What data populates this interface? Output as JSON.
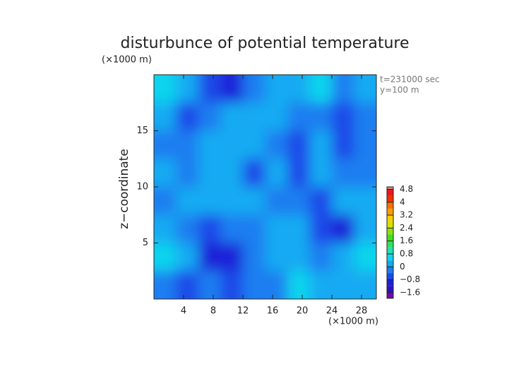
{
  "chart_data": {
    "type": "contour",
    "title": "disturbunce of potential temperature",
    "y_unit": "(×1000 m)",
    "x_unit": "(×1000 m)",
    "ylabel": "z−coordinate",
    "annotations": [
      "t=231000 sec",
      "y=100 m"
    ],
    "xlim": [
      0,
      30
    ],
    "ylim": [
      0,
      20
    ],
    "xticks": [
      4,
      8,
      12,
      16,
      20,
      24,
      28
    ],
    "yticks": [
      5,
      10,
      15
    ],
    "x_edges": [
      0,
      3,
      6,
      9,
      12,
      15,
      18,
      21,
      24,
      27,
      30
    ],
    "y_edges": [
      20,
      17.5,
      15,
      12.5,
      10,
      7.5,
      5,
      2.5,
      0
    ],
    "z": [
      [
        0.5,
        0.0,
        -0.5,
        -1.0,
        -0.3,
        0.1,
        0.2,
        0.5,
        -0.2,
        0.0
      ],
      [
        0.0,
        -0.5,
        -0.2,
        0.2,
        0.3,
        0.2,
        -0.4,
        -0.2,
        -0.6,
        -0.3
      ],
      [
        -0.2,
        -0.4,
        0.2,
        0.3,
        0.0,
        -0.2,
        -0.5,
        0.2,
        -0.6,
        -0.4
      ],
      [
        0.2,
        -0.3,
        0.0,
        0.2,
        -0.5,
        0.1,
        -0.5,
        0.3,
        -0.2,
        -0.4
      ],
      [
        -0.1,
        0.3,
        0.0,
        0.2,
        0.3,
        -0.3,
        -0.1,
        -0.5,
        0.0,
        0.3
      ],
      [
        0.1,
        -0.2,
        -0.5,
        -0.2,
        -0.3,
        0.1,
        0.0,
        -0.5,
        -0.9,
        0.1
      ],
      [
        0.5,
        0.2,
        -0.9,
        -1.1,
        -0.4,
        0.0,
        0.3,
        -0.4,
        0.2,
        0.5
      ],
      [
        -0.2,
        -0.5,
        -0.4,
        -0.6,
        -0.3,
        -0.3,
        0.5,
        0.3,
        0.2,
        0.0
      ]
    ],
    "levels": [
      -2.0,
      -1.6,
      -1.2,
      -0.8,
      -0.4,
      0,
      0.4,
      0.8,
      1.2,
      1.6,
      2.0,
      2.4,
      2.8,
      3.2,
      3.6,
      4.0,
      4.4,
      4.8,
      5.2
    ],
    "level_colors": [
      "#6a0dad",
      "#3010c0",
      "#1a20d8",
      "#1e48e8",
      "#1e7ef0",
      "#12aaf2",
      "#10d4ec",
      "#20e0b0",
      "#30e060",
      "#40e020",
      "#90e010",
      "#d8e000",
      "#f8d000",
      "#f8a000",
      "#f87000",
      "#f03000",
      "#e81818",
      "#f08080"
    ],
    "colorbar_lim": [
      -1.95,
      4.95
    ],
    "colorbar_ticks": [
      {
        "value": -1.6,
        "label": "−1.6"
      },
      {
        "value": -0.8,
        "label": "−0.8"
      },
      0,
      0.8,
      1.6,
      2.4,
      3.2,
      4,
      4.8
    ]
  }
}
